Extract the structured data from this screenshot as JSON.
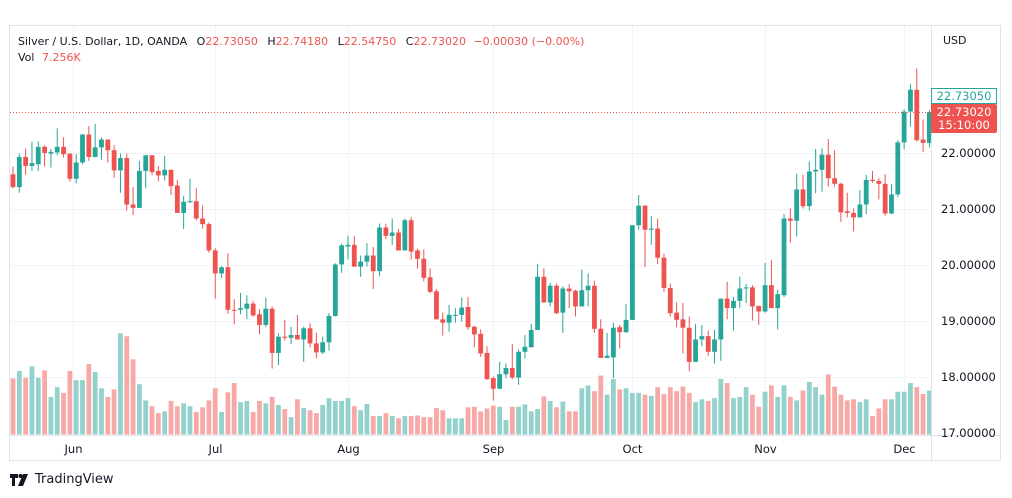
{
  "header": {
    "symbol": "Silver / U.S. Dollar, 1D, OANDA",
    "open_label": "O",
    "open": "22.73050",
    "high_label": "H",
    "high": "22.74180",
    "low_label": "L",
    "low": "22.54750",
    "close_label": "C",
    "close": "22.73020",
    "change": "−0.00030 (−0.00%)",
    "vol_label": "Vol",
    "vol": "7.256K"
  },
  "price_axis": {
    "currency": "USD",
    "last_close_label": "22.73050",
    "current_price_label": "22.73020",
    "countdown": "15:10:00"
  },
  "branding": {
    "name": "TradingView"
  },
  "colors": {
    "up": "#26a69a",
    "down": "#ef5350",
    "up_volume": "#93d2cc",
    "down_volume": "#f7a9a7",
    "grid": "#f0f3fa"
  },
  "chart_data": {
    "type": "candlestick",
    "title": "Silver / U.S. Dollar, 1D, OANDA",
    "ylabel": "USD",
    "ylim": [
      16.96,
      24.29
    ],
    "y_ticks": [
      "22.00000",
      "21.00000",
      "20.00000",
      "19.00000",
      "18.00000",
      "17.00000"
    ],
    "y_tick_values": [
      22,
      21,
      20,
      19,
      18,
      17
    ],
    "current_price": 22.7302,
    "x_ticks": [
      {
        "label": "Jun",
        "index": 9.5
      },
      {
        "label": "Jul",
        "index": 32
      },
      {
        "label": "Aug",
        "index": 53
      },
      {
        "label": "Sep",
        "index": 76
      },
      {
        "label": "Oct",
        "index": 98
      },
      {
        "label": "Nov",
        "index": 119
      },
      {
        "label": "Dec",
        "index": 141
      }
    ],
    "volume_unit": "K",
    "grid": true,
    "candle_fields": [
      "open",
      "high",
      "low",
      "close",
      "volume_k"
    ],
    "candles": [
      [
        21.62,
        21.76,
        21.37,
        21.39,
        9.7
      ],
      [
        21.39,
        21.99,
        21.29,
        21.93,
        11.0
      ],
      [
        21.93,
        22.08,
        21.61,
        21.77,
        9.8
      ],
      [
        21.77,
        22.2,
        21.68,
        21.82,
        11.8
      ],
      [
        21.8,
        22.21,
        21.68,
        22.11,
        9.8
      ],
      [
        22.11,
        22.14,
        21.76,
        22.0,
        11.1
      ],
      [
        21.99,
        22.07,
        21.74,
        22.02,
        6.5
      ],
      [
        22.01,
        22.44,
        21.96,
        22.11,
        8.2
      ],
      [
        22.11,
        22.28,
        21.92,
        21.98,
        7.2
      ],
      [
        21.99,
        21.99,
        21.49,
        21.54,
        11.0
      ],
      [
        21.54,
        21.98,
        21.46,
        21.83,
        9.4
      ],
      [
        21.83,
        22.34,
        21.8,
        22.33,
        9.4
      ],
      [
        22.33,
        22.48,
        21.86,
        21.93,
        12.2
      ],
      [
        21.93,
        22.52,
        21.92,
        22.1,
        10.8
      ],
      [
        22.1,
        22.28,
        21.88,
        22.24,
        8.0
      ],
      [
        22.24,
        22.24,
        21.83,
        22.05,
        6.5
      ],
      [
        22.05,
        22.14,
        21.56,
        21.69,
        7.8
      ],
      [
        21.69,
        21.99,
        21.29,
        21.91,
        17.5
      ],
      [
        21.91,
        21.99,
        20.97,
        21.08,
        17.0
      ],
      [
        21.08,
        21.39,
        20.89,
        21.02,
        13.0
      ],
      [
        21.02,
        21.86,
        21.03,
        21.68,
        8.7
      ],
      [
        21.68,
        21.96,
        21.37,
        21.96,
        5.9
      ],
      [
        21.96,
        21.96,
        21.6,
        21.66,
        4.9
      ],
      [
        21.68,
        21.77,
        21.49,
        21.6,
        3.7
      ],
      [
        21.6,
        21.95,
        21.51,
        21.7,
        4.0
      ],
      [
        21.7,
        21.7,
        21.25,
        21.41,
        5.8
      ],
      [
        21.42,
        21.52,
        20.93,
        20.93,
        4.9
      ],
      [
        20.93,
        21.23,
        20.64,
        21.13,
        5.4
      ],
      [
        21.12,
        21.54,
        21.11,
        21.14,
        4.9
      ],
      [
        21.14,
        21.37,
        20.8,
        20.83,
        3.9
      ],
      [
        20.83,
        21.06,
        20.65,
        20.73,
        4.7
      ],
      [
        20.73,
        20.76,
        20.22,
        20.26,
        5.9
      ],
      [
        20.26,
        20.3,
        19.4,
        19.85,
        8.0
      ],
      [
        19.85,
        19.98,
        19.77,
        19.96,
        3.9
      ],
      [
        19.96,
        20.21,
        19.13,
        19.2,
        7.3
      ],
      [
        19.2,
        19.39,
        18.94,
        19.19,
        8.9
      ],
      [
        19.2,
        19.5,
        19.12,
        19.23,
        5.6
      ],
      [
        19.22,
        19.46,
        19.03,
        19.31,
        5.8
      ],
      [
        19.31,
        19.36,
        19.08,
        19.1,
        3.9
      ],
      [
        19.12,
        19.21,
        18.76,
        18.93,
        5.8
      ],
      [
        18.93,
        19.42,
        18.89,
        19.22,
        5.4
      ],
      [
        19.22,
        19.26,
        18.15,
        18.43,
        6.5
      ],
      [
        18.43,
        18.78,
        18.21,
        18.72,
        5.1
      ],
      [
        18.72,
        19.02,
        18.65,
        18.7,
        4.4
      ],
      [
        18.7,
        18.9,
        18.59,
        18.75,
        3.0
      ],
      [
        18.75,
        19.11,
        18.67,
        18.67,
        6.1
      ],
      [
        18.67,
        18.9,
        18.27,
        18.87,
        4.6
      ],
      [
        18.87,
        18.96,
        18.53,
        18.6,
        4.2
      ],
      [
        18.6,
        18.79,
        18.33,
        18.44,
        3.7
      ],
      [
        18.44,
        18.72,
        18.41,
        18.62,
        5.1
      ],
      [
        18.62,
        19.14,
        18.47,
        19.09,
        6.3
      ],
      [
        19.09,
        20.03,
        19.08,
        20.01,
        5.8
      ],
      [
        20.01,
        20.38,
        19.86,
        20.35,
        5.8
      ],
      [
        20.33,
        20.52,
        20.1,
        20.36,
        6.3
      ],
      [
        20.36,
        20.52,
        19.97,
        19.97,
        4.9
      ],
      [
        19.97,
        20.17,
        19.79,
        20.06,
        4.2
      ],
      [
        20.06,
        20.39,
        19.97,
        20.17,
        5.3
      ],
      [
        20.17,
        20.32,
        19.57,
        19.89,
        3.2
      ],
      [
        19.89,
        20.74,
        19.8,
        20.67,
        3.2
      ],
      [
        20.67,
        20.74,
        20.46,
        20.52,
        3.7
      ],
      [
        20.52,
        20.83,
        20.36,
        20.58,
        3.2
      ],
      [
        20.58,
        20.64,
        20.27,
        20.26,
        2.8
      ],
      [
        20.26,
        20.83,
        20.27,
        20.8,
        3.2
      ],
      [
        20.8,
        20.86,
        20.1,
        20.24,
        3.2
      ],
      [
        20.26,
        20.29,
        19.93,
        20.11,
        3.3
      ],
      [
        20.11,
        20.28,
        19.71,
        19.77,
        3.0
      ],
      [
        19.78,
        19.94,
        19.5,
        19.52,
        3.0
      ],
      [
        19.53,
        19.57,
        19.05,
        19.03,
        4.6
      ],
      [
        19.03,
        19.15,
        18.74,
        18.97,
        4.2
      ],
      [
        18.97,
        19.29,
        18.81,
        19.11,
        2.8
      ],
      [
        19.1,
        19.23,
        18.97,
        19.11,
        2.8
      ],
      [
        19.11,
        19.42,
        18.99,
        19.24,
        2.8
      ],
      [
        19.25,
        19.43,
        18.84,
        18.89,
        4.7
      ],
      [
        18.9,
        18.91,
        18.53,
        18.76,
        4.8
      ],
      [
        18.77,
        18.85,
        18.36,
        18.42,
        4.0
      ],
      [
        18.43,
        18.55,
        17.95,
        17.96,
        4.5
      ],
      [
        17.98,
        18.01,
        17.58,
        17.79,
        5.0
      ],
      [
        17.79,
        18.27,
        17.8,
        18.05,
        4.8
      ],
      [
        18.05,
        18.24,
        17.98,
        18.16,
        2.5
      ],
      [
        18.16,
        18.59,
        17.96,
        17.99,
        4.8
      ],
      [
        17.99,
        18.49,
        17.86,
        18.45,
        4.8
      ],
      [
        18.45,
        18.75,
        18.33,
        18.54,
        5.2
      ],
      [
        18.53,
        18.95,
        18.54,
        18.84,
        4.0
      ],
      [
        18.84,
        20.02,
        18.85,
        19.79,
        4.4
      ],
      [
        19.79,
        19.94,
        19.35,
        19.33,
        6.6
      ],
      [
        19.33,
        19.68,
        19.26,
        19.63,
        5.8
      ],
      [
        19.63,
        19.67,
        19.12,
        19.14,
        4.7
      ],
      [
        19.15,
        19.62,
        18.79,
        19.58,
        5.7
      ],
      [
        19.58,
        19.66,
        19.23,
        19.53,
        4.0
      ],
      [
        19.54,
        19.56,
        19.08,
        19.26,
        4.0
      ],
      [
        19.26,
        19.92,
        19.26,
        19.55,
        8.0
      ],
      [
        19.55,
        19.85,
        19.26,
        19.63,
        8.5
      ],
      [
        19.63,
        19.72,
        18.79,
        18.86,
        7.5
      ],
      [
        18.86,
        19.03,
        18.35,
        18.34,
        10.2
      ],
      [
        18.34,
        18.79,
        18.35,
        18.38,
        6.9
      ],
      [
        18.35,
        18.97,
        17.98,
        18.88,
        9.6
      ],
      [
        18.89,
        18.93,
        18.51,
        18.8,
        7.8
      ],
      [
        18.8,
        19.3,
        18.79,
        19.02,
        8.0
      ],
      [
        19.02,
        20.71,
        19.02,
        20.71,
        7.2
      ],
      [
        20.71,
        21.25,
        20.63,
        21.06,
        7.2
      ],
      [
        21.06,
        21.07,
        19.96,
        20.63,
        6.9
      ],
      [
        20.63,
        20.87,
        20.36,
        20.65,
        6.7
      ],
      [
        20.65,
        20.83,
        20.02,
        20.13,
        8.2
      ],
      [
        20.13,
        20.2,
        19.52,
        19.59,
        7.0
      ],
      [
        19.59,
        19.67,
        19.08,
        19.14,
        8.2
      ],
      [
        19.15,
        19.33,
        18.89,
        19.02,
        7.5
      ],
      [
        19.03,
        19.32,
        18.42,
        18.88,
        8.3
      ],
      [
        18.88,
        19.08,
        18.1,
        18.27,
        7.2
      ],
      [
        18.27,
        18.95,
        18.27,
        18.67,
        5.6
      ],
      [
        18.67,
        18.93,
        18.55,
        18.73,
        6.1
      ],
      [
        18.73,
        18.83,
        18.38,
        18.45,
        5.8
      ],
      [
        18.45,
        18.84,
        18.24,
        18.67,
        6.3
      ],
      [
        18.67,
        19.4,
        18.29,
        19.4,
        9.6
      ],
      [
        19.4,
        19.7,
        19.03,
        19.23,
        8.9
      ],
      [
        19.23,
        19.43,
        18.83,
        19.36,
        6.3
      ],
      [
        19.36,
        19.79,
        19.23,
        19.58,
        6.5
      ],
      [
        19.58,
        19.66,
        19.32,
        19.6,
        8.2
      ],
      [
        19.6,
        19.64,
        19.01,
        19.26,
        6.9
      ],
      [
        19.27,
        19.27,
        18.93,
        19.17,
        4.8
      ],
      [
        19.17,
        20.04,
        19.15,
        19.64,
        7.4
      ],
      [
        19.64,
        20.09,
        19.23,
        19.23,
        8.5
      ],
      [
        19.23,
        19.56,
        18.85,
        19.48,
        6.5
      ],
      [
        19.46,
        20.91,
        19.43,
        20.83,
        8.5
      ],
      [
        20.83,
        21.01,
        20.4,
        20.79,
        6.5
      ],
      [
        20.79,
        21.63,
        20.51,
        21.35,
        5.9
      ],
      [
        21.35,
        21.61,
        21.01,
        21.05,
        7.6
      ],
      [
        21.05,
        21.85,
        20.97,
        21.67,
        9.1
      ],
      [
        21.67,
        22.07,
        21.28,
        21.7,
        8.2
      ],
      [
        21.7,
        22.08,
        21.31,
        21.97,
        6.9
      ],
      [
        21.97,
        22.25,
        21.4,
        21.55,
        10.4
      ],
      [
        21.55,
        22.05,
        21.4,
        21.45,
        8.3
      ],
      [
        21.45,
        21.47,
        20.77,
        20.94,
        6.9
      ],
      [
        20.96,
        21.29,
        20.85,
        20.93,
        5.9
      ],
      [
        20.93,
        21.01,
        20.6,
        20.85,
        6.1
      ],
      [
        20.85,
        21.34,
        20.85,
        21.08,
        5.6
      ],
      [
        21.08,
        21.61,
        20.91,
        21.52,
        6.1
      ],
      [
        21.52,
        21.68,
        21.47,
        21.5,
        3.2
      ],
      [
        21.5,
        21.55,
        21.17,
        21.45,
        4.5
      ],
      [
        21.45,
        21.62,
        20.88,
        20.92,
        6.1
      ],
      [
        20.92,
        21.44,
        20.91,
        21.26,
        6.1
      ],
      [
        21.26,
        22.23,
        21.21,
        22.19,
        7.4
      ],
      [
        22.19,
        22.78,
        22.07,
        22.74,
        7.4
      ],
      [
        22.74,
        23.23,
        22.47,
        23.13,
        8.9
      ],
      [
        23.13,
        23.51,
        22.2,
        22.23,
        8.2
      ],
      [
        22.24,
        22.6,
        22.02,
        22.18,
        7.0
      ],
      [
        22.18,
        22.77,
        22.1,
        22.73,
        7.6
      ]
    ]
  }
}
